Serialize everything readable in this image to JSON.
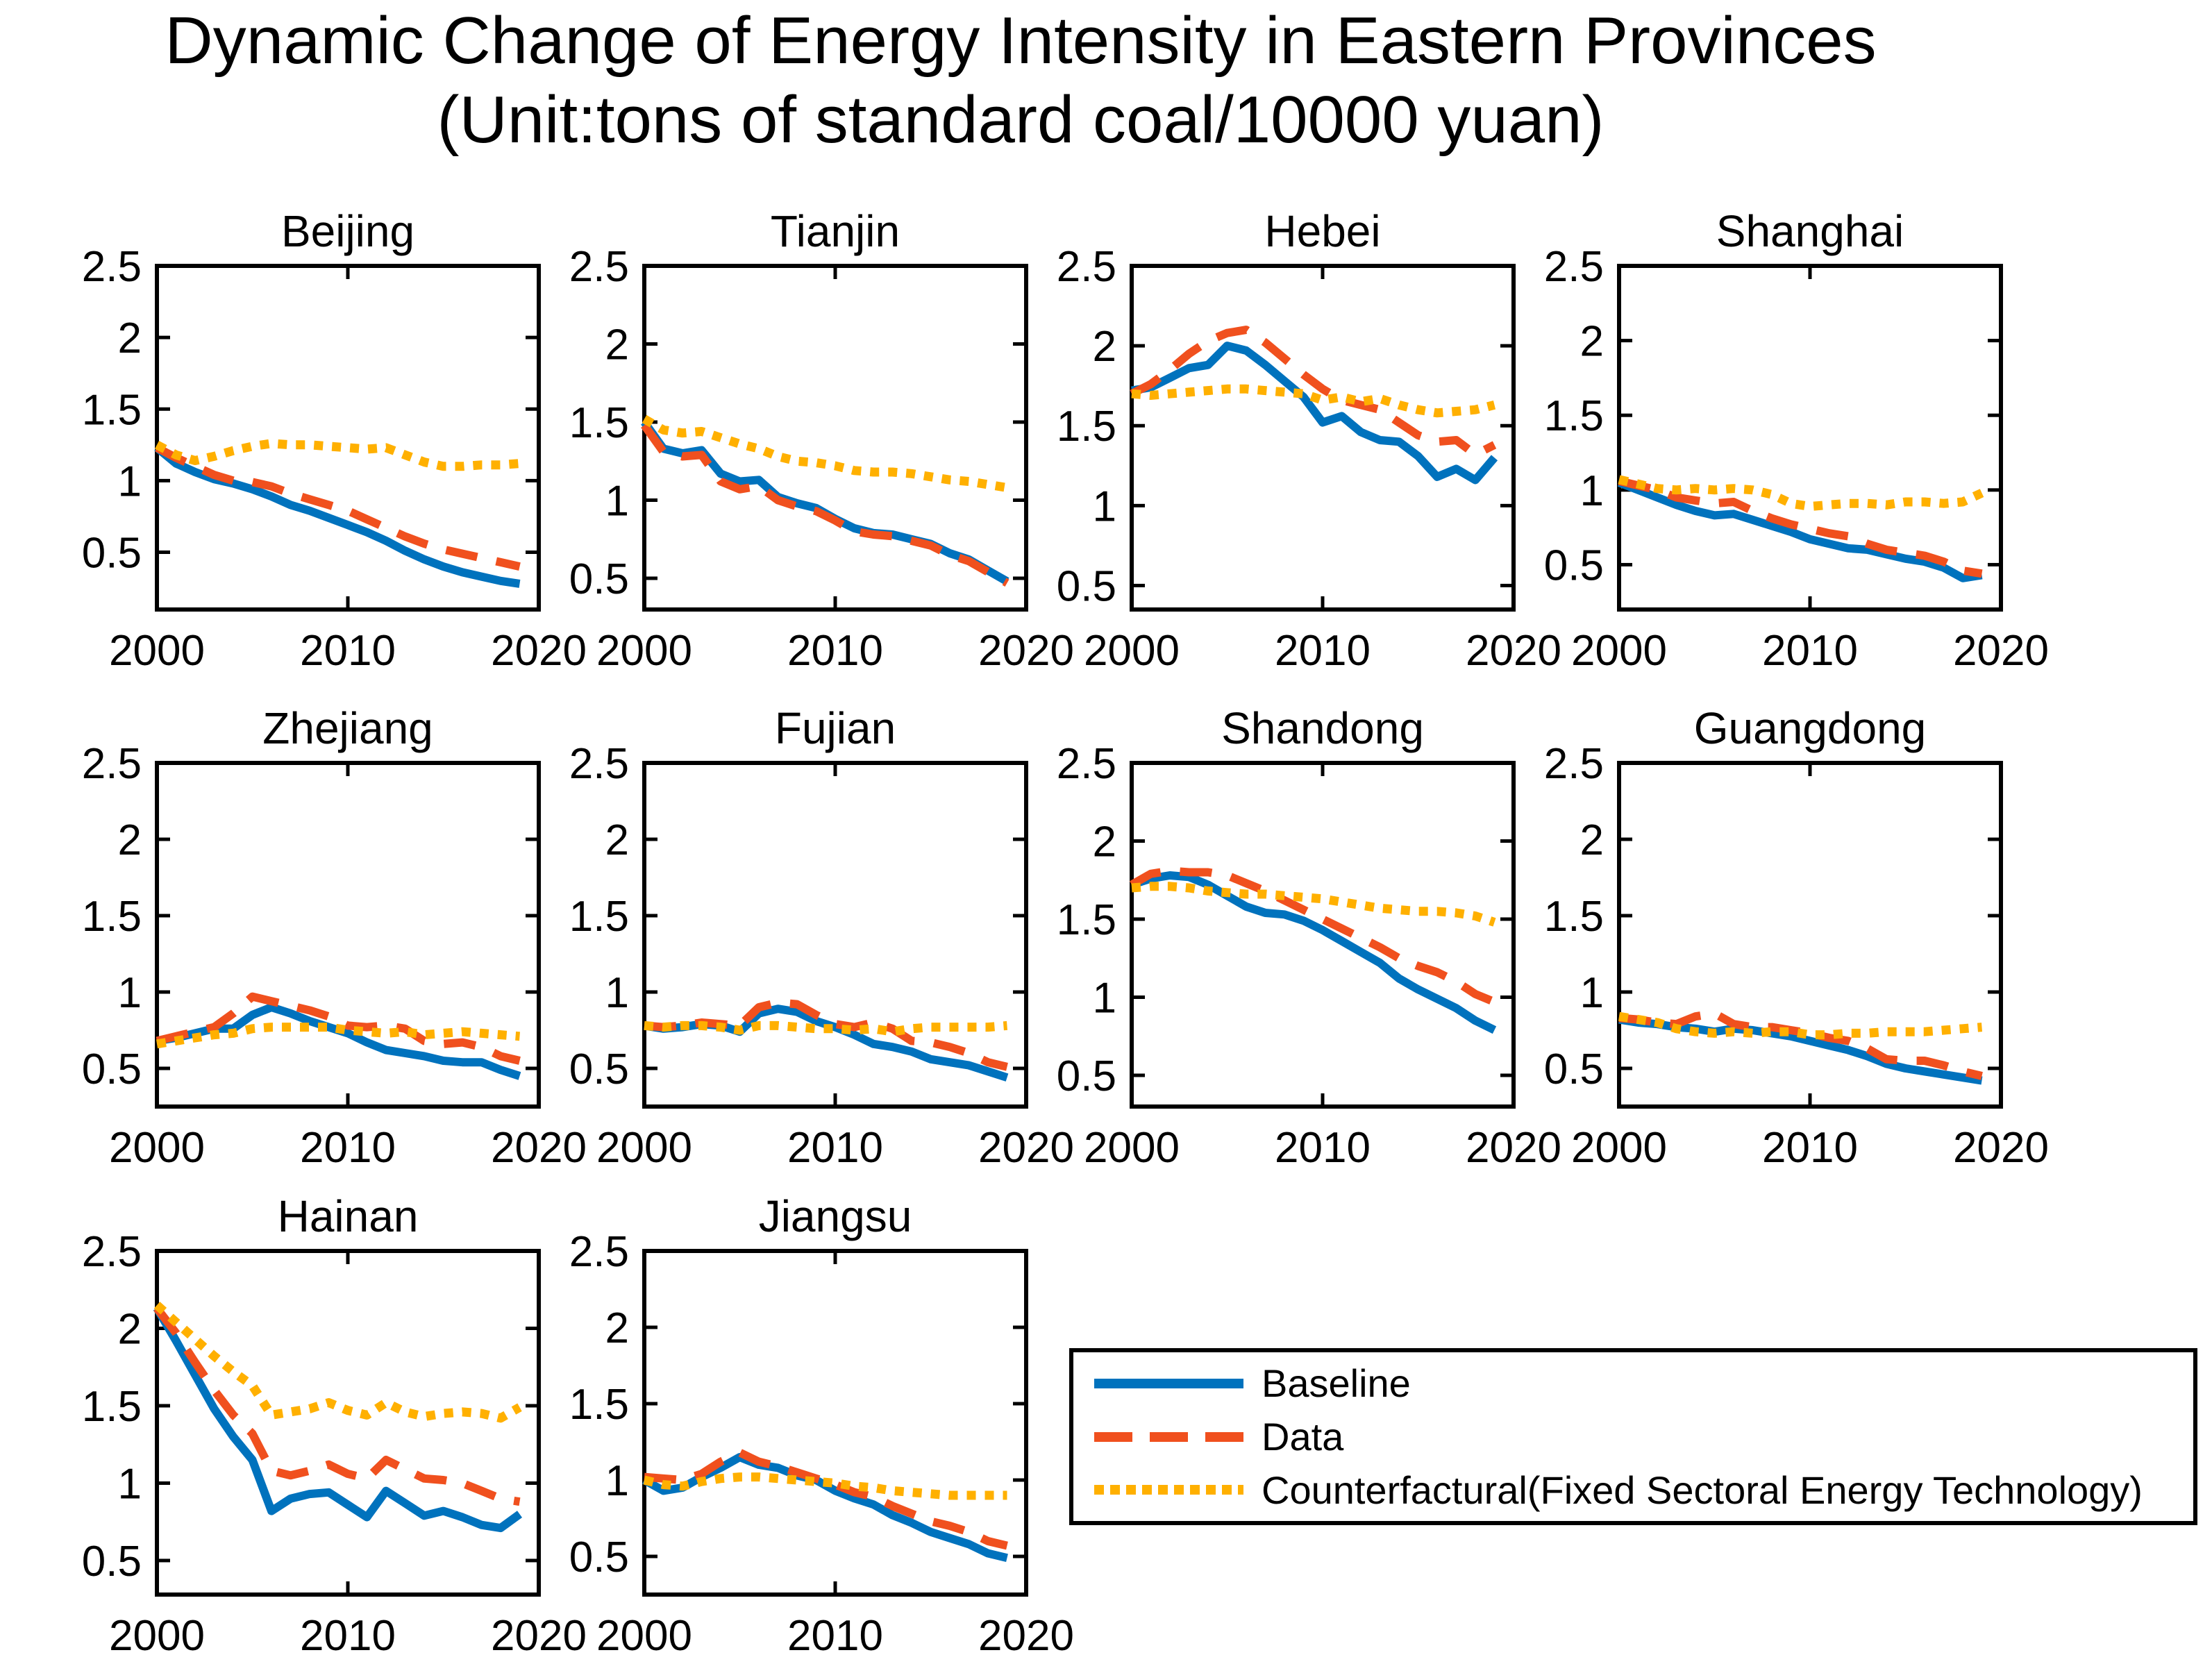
{
  "title": {
    "line1": "Dynamic Change of Energy Intensity in Eastern Provinces",
    "line2": "(Unit:tons of standard coal/10000 yuan)"
  },
  "legend": {
    "items": [
      {
        "label": "Baseline",
        "color": "#0072BD",
        "style": "solid"
      },
      {
        "label": "Data",
        "color": "#F0501E",
        "style": "dashed"
      },
      {
        "label": "Counterfactural(Fixed Sectoral Energy Technology)",
        "color": "#FFB000",
        "style": "dotted"
      }
    ]
  },
  "years": [
    2000,
    2001,
    2002,
    2003,
    2004,
    2005,
    2006,
    2007,
    2008,
    2009,
    2010,
    2011,
    2012,
    2013,
    2014,
    2015,
    2016,
    2017,
    2018,
    2019
  ],
  "axis": {
    "xticks": [
      2000,
      2010,
      2020
    ],
    "yticks": [
      0.5,
      1,
      1.5,
      2,
      2.5
    ],
    "xlim": [
      2000,
      2020
    ],
    "ymax": 2.5,
    "grid": false
  },
  "chart_data": [
    {
      "type": "line",
      "title": "Beijing",
      "ymin": 0.1,
      "series": [
        {
          "name": "Baseline",
          "values": [
            1.23,
            1.12,
            1.06,
            1.01,
            0.98,
            0.94,
            0.89,
            0.83,
            0.79,
            0.74,
            0.69,
            0.64,
            0.58,
            0.51,
            0.45,
            0.4,
            0.36,
            0.33,
            0.3,
            0.28
          ]
        },
        {
          "name": "Data",
          "values": [
            1.23,
            1.16,
            1.1,
            1.04,
            1.0,
            0.99,
            0.96,
            0.91,
            0.87,
            0.83,
            0.79,
            0.73,
            0.67,
            0.61,
            0.56,
            0.52,
            0.49,
            0.46,
            0.43,
            0.4
          ]
        },
        {
          "name": "Counterfactural",
          "values": [
            1.25,
            1.18,
            1.14,
            1.17,
            1.21,
            1.24,
            1.26,
            1.25,
            1.25,
            1.24,
            1.23,
            1.22,
            1.23,
            1.18,
            1.13,
            1.1,
            1.1,
            1.11,
            1.11,
            1.12
          ]
        }
      ]
    },
    {
      "type": "line",
      "title": "Tianjin",
      "ymin": 0.3,
      "series": [
        {
          "name": "Baseline",
          "values": [
            1.5,
            1.33,
            1.3,
            1.32,
            1.17,
            1.12,
            1.13,
            1.02,
            0.98,
            0.95,
            0.88,
            0.82,
            0.79,
            0.78,
            0.75,
            0.72,
            0.66,
            0.62,
            0.55,
            0.48
          ]
        },
        {
          "name": "Data",
          "values": [
            1.48,
            1.31,
            1.28,
            1.29,
            1.12,
            1.07,
            1.09,
            1.0,
            0.96,
            0.93,
            0.87,
            0.8,
            0.78,
            0.77,
            0.74,
            0.71,
            0.65,
            0.61,
            0.54,
            0.47
          ]
        },
        {
          "name": "Counterfactural",
          "values": [
            1.52,
            1.45,
            1.43,
            1.44,
            1.4,
            1.36,
            1.33,
            1.28,
            1.25,
            1.24,
            1.22,
            1.19,
            1.18,
            1.18,
            1.17,
            1.15,
            1.13,
            1.12,
            1.1,
            1.08
          ]
        }
      ]
    },
    {
      "type": "line",
      "title": "Hebei",
      "ymin": 0.35,
      "series": [
        {
          "name": "Baseline",
          "values": [
            1.72,
            1.74,
            1.8,
            1.86,
            1.88,
            2.0,
            1.97,
            1.88,
            1.78,
            1.68,
            1.52,
            1.56,
            1.46,
            1.41,
            1.4,
            1.31,
            1.18,
            1.23,
            1.16,
            1.3
          ]
        },
        {
          "name": "Data",
          "values": [
            1.7,
            1.76,
            1.85,
            1.95,
            2.03,
            2.08,
            2.1,
            2.02,
            1.92,
            1.82,
            1.73,
            1.66,
            1.63,
            1.6,
            1.52,
            1.44,
            1.4,
            1.41,
            1.32,
            1.38
          ]
        },
        {
          "name": "Counterfactural",
          "values": [
            1.7,
            1.69,
            1.7,
            1.71,
            1.72,
            1.73,
            1.73,
            1.72,
            1.71,
            1.7,
            1.66,
            1.68,
            1.65,
            1.67,
            1.63,
            1.6,
            1.58,
            1.59,
            1.6,
            1.63
          ]
        }
      ]
    },
    {
      "type": "line",
      "title": "Shanghai",
      "ymin": 0.2,
      "series": [
        {
          "name": "Baseline",
          "values": [
            1.05,
            1.0,
            0.95,
            0.9,
            0.86,
            0.83,
            0.84,
            0.8,
            0.76,
            0.72,
            0.67,
            0.64,
            0.61,
            0.6,
            0.57,
            0.54,
            0.52,
            0.48,
            0.41,
            0.43
          ]
        },
        {
          "name": "Data",
          "values": [
            1.06,
            1.03,
            1.0,
            0.95,
            0.93,
            0.91,
            0.92,
            0.86,
            0.81,
            0.77,
            0.74,
            0.71,
            0.69,
            0.64,
            0.6,
            0.58,
            0.56,
            0.52,
            0.46,
            0.44
          ]
        },
        {
          "name": "Counterfactural",
          "values": [
            1.07,
            1.04,
            1.01,
            1.0,
            1.01,
            1.0,
            1.01,
            1.0,
            0.97,
            0.91,
            0.89,
            0.9,
            0.91,
            0.91,
            0.9,
            0.92,
            0.92,
            0.91,
            0.92,
            0.98
          ]
        }
      ]
    },
    {
      "type": "line",
      "title": "Zhejiang",
      "ymin": 0.25,
      "series": [
        {
          "name": "Baseline",
          "values": [
            0.68,
            0.7,
            0.73,
            0.76,
            0.76,
            0.85,
            0.9,
            0.86,
            0.81,
            0.77,
            0.73,
            0.67,
            0.62,
            0.6,
            0.58,
            0.55,
            0.54,
            0.54,
            0.49,
            0.45
          ]
        },
        {
          "name": "Data",
          "values": [
            0.68,
            0.71,
            0.74,
            0.77,
            0.86,
            0.97,
            0.94,
            0.91,
            0.88,
            0.84,
            0.78,
            0.77,
            0.78,
            0.76,
            0.68,
            0.66,
            0.67,
            0.64,
            0.58,
            0.55
          ]
        },
        {
          "name": "Counterfactural",
          "values": [
            0.66,
            0.68,
            0.7,
            0.72,
            0.73,
            0.76,
            0.77,
            0.77,
            0.77,
            0.77,
            0.75,
            0.74,
            0.73,
            0.74,
            0.72,
            0.73,
            0.74,
            0.73,
            0.72,
            0.71
          ]
        }
      ]
    },
    {
      "type": "line",
      "title": "Fujian",
      "ymin": 0.25,
      "series": [
        {
          "name": "Baseline",
          "values": [
            0.78,
            0.76,
            0.77,
            0.79,
            0.78,
            0.74,
            0.86,
            0.89,
            0.87,
            0.81,
            0.77,
            0.72,
            0.66,
            0.64,
            0.61,
            0.56,
            0.54,
            0.52,
            0.48,
            0.44
          ]
        },
        {
          "name": "Data",
          "values": [
            0.78,
            0.77,
            0.78,
            0.8,
            0.79,
            0.78,
            0.9,
            0.93,
            0.92,
            0.85,
            0.79,
            0.77,
            0.8,
            0.76,
            0.68,
            0.67,
            0.64,
            0.6,
            0.54,
            0.51
          ]
        },
        {
          "name": "Counterfactural",
          "values": [
            0.78,
            0.77,
            0.78,
            0.78,
            0.77,
            0.75,
            0.78,
            0.78,
            0.77,
            0.76,
            0.76,
            0.75,
            0.76,
            0.74,
            0.76,
            0.77,
            0.77,
            0.77,
            0.77,
            0.78
          ]
        }
      ]
    },
    {
      "type": "line",
      "title": "Shandong",
      "ymin": 0.3,
      "series": [
        {
          "name": "Baseline",
          "values": [
            1.72,
            1.76,
            1.78,
            1.77,
            1.72,
            1.65,
            1.58,
            1.54,
            1.53,
            1.49,
            1.43,
            1.36,
            1.29,
            1.22,
            1.12,
            1.05,
            0.99,
            0.93,
            0.85,
            0.79
          ]
        },
        {
          "name": "Data",
          "values": [
            1.72,
            1.79,
            1.81,
            1.8,
            1.8,
            1.78,
            1.73,
            1.68,
            1.62,
            1.56,
            1.5,
            1.44,
            1.38,
            1.32,
            1.25,
            1.2,
            1.16,
            1.1,
            1.02,
            0.97
          ]
        },
        {
          "name": "Counterfactural",
          "values": [
            1.7,
            1.71,
            1.71,
            1.7,
            1.68,
            1.67,
            1.66,
            1.66,
            1.65,
            1.64,
            1.63,
            1.61,
            1.59,
            1.57,
            1.56,
            1.55,
            1.55,
            1.54,
            1.52,
            1.48
          ]
        }
      ]
    },
    {
      "type": "line",
      "title": "Guangdong",
      "ymin": 0.25,
      "series": [
        {
          "name": "Baseline",
          "values": [
            0.82,
            0.8,
            0.79,
            0.77,
            0.76,
            0.74,
            0.76,
            0.75,
            0.73,
            0.71,
            0.68,
            0.65,
            0.62,
            0.58,
            0.53,
            0.5,
            0.48,
            0.46,
            0.44,
            0.42
          ]
        },
        {
          "name": "Data",
          "values": [
            0.83,
            0.82,
            0.8,
            0.79,
            0.84,
            0.86,
            0.79,
            0.77,
            0.77,
            0.75,
            0.73,
            0.7,
            0.68,
            0.63,
            0.56,
            0.55,
            0.55,
            0.52,
            0.48,
            0.45
          ]
        },
        {
          "name": "Counterfactural",
          "values": [
            0.84,
            0.82,
            0.8,
            0.76,
            0.74,
            0.73,
            0.74,
            0.73,
            0.74,
            0.74,
            0.72,
            0.72,
            0.73,
            0.73,
            0.74,
            0.74,
            0.74,
            0.75,
            0.76,
            0.77
          ]
        }
      ]
    },
    {
      "type": "line",
      "title": "Hainan",
      "ymin": 0.28,
      "series": [
        {
          "name": "Baseline",
          "values": [
            2.13,
            1.92,
            1.7,
            1.48,
            1.3,
            1.15,
            0.82,
            0.9,
            0.93,
            0.94,
            0.86,
            0.78,
            0.95,
            0.87,
            0.79,
            0.82,
            0.78,
            0.73,
            0.71,
            0.8
          ]
        },
        {
          "name": "Data",
          "values": [
            2.13,
            1.97,
            1.78,
            1.6,
            1.44,
            1.32,
            1.08,
            1.05,
            1.08,
            1.12,
            1.06,
            1.03,
            1.15,
            1.09,
            1.03,
            1.02,
            1.0,
            0.95,
            0.9,
            0.88
          ]
        },
        {
          "name": "Counterfactural",
          "values": [
            2.15,
            2.04,
            1.93,
            1.82,
            1.72,
            1.63,
            1.44,
            1.46,
            1.48,
            1.52,
            1.47,
            1.44,
            1.52,
            1.46,
            1.43,
            1.45,
            1.46,
            1.45,
            1.42,
            1.49
          ]
        }
      ]
    },
    {
      "type": "line",
      "title": "Jiangsu",
      "ymin": 0.25,
      "series": [
        {
          "name": "Baseline",
          "values": [
            1.0,
            0.93,
            0.95,
            1.02,
            1.08,
            1.15,
            1.1,
            1.08,
            1.03,
            1.0,
            0.93,
            0.88,
            0.84,
            0.77,
            0.72,
            0.66,
            0.62,
            0.58,
            0.52,
            0.49
          ]
        },
        {
          "name": "Data",
          "values": [
            1.02,
            1.01,
            1.0,
            1.04,
            1.12,
            1.18,
            1.12,
            1.09,
            1.05,
            1.01,
            0.97,
            0.92,
            0.89,
            0.83,
            0.78,
            0.73,
            0.7,
            0.66,
            0.6,
            0.57
          ]
        },
        {
          "name": "Counterfactural",
          "values": [
            1.0,
            0.97,
            0.96,
            0.99,
            1.01,
            1.02,
            1.02,
            1.01,
            1.0,
            0.99,
            0.98,
            0.96,
            0.95,
            0.93,
            0.92,
            0.91,
            0.9,
            0.9,
            0.9,
            0.9
          ]
        }
      ]
    }
  ]
}
